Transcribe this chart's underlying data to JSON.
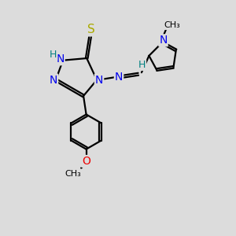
{
  "bg_color": "#dcdcdc",
  "bond_color": "#000000",
  "N_color": "#0000ee",
  "S_color": "#aaaa00",
  "O_color": "#ee0000",
  "H_color": "#008080",
  "lw": 1.6,
  "dbo": 0.055,
  "figsize": [
    3.0,
    3.0
  ],
  "dpi": 100,
  "xlim": [
    0,
    10
  ],
  "ylim": [
    0,
    10
  ]
}
